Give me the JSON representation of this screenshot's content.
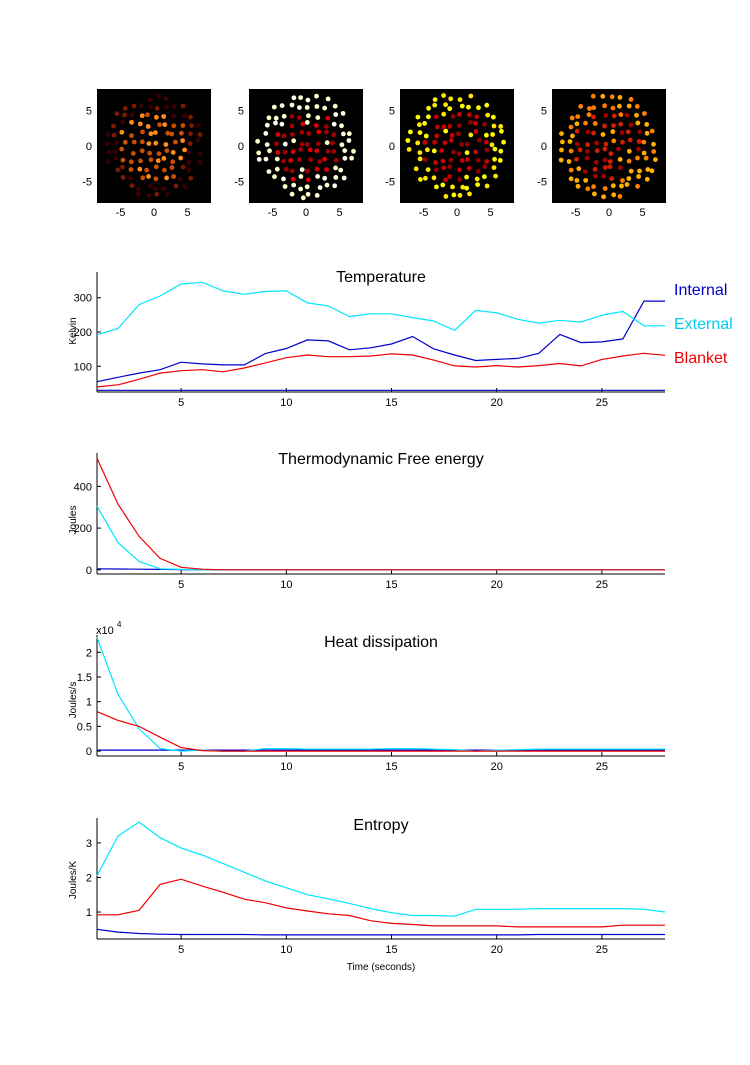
{
  "chart_data": [
    {
      "type": "scatter",
      "panel": "snapshot-1",
      "xlim": [
        -8.5,
        8.5
      ],
      "ylim": [
        -8,
        8
      ],
      "xticks": [
        "-5",
        "0",
        "5"
      ],
      "yticks": [
        "5",
        "0",
        "-5"
      ],
      "palette": [
        "#3a0000",
        "#7a1a00",
        "#c85000",
        "#ff8c1a"
      ]
    },
    {
      "type": "scatter",
      "panel": "snapshot-2",
      "xlim": [
        -8.5,
        8.5
      ],
      "ylim": [
        -8,
        8
      ],
      "xticks": [
        "-5",
        "0",
        "5"
      ],
      "yticks": [
        "5",
        "0",
        "-5"
      ],
      "palette": [
        "#fffbe6",
        "#ffffcc",
        "#e00000",
        "#a00000"
      ]
    },
    {
      "type": "scatter",
      "panel": "snapshot-3",
      "xlim": [
        -8.5,
        8.5
      ],
      "ylim": [
        -8,
        8
      ],
      "xticks": [
        "-5",
        "0",
        "5"
      ],
      "yticks": [
        "5",
        "0",
        "-5"
      ],
      "palette": [
        "#ffff00",
        "#ffe600",
        "#c80000",
        "#900000"
      ]
    },
    {
      "type": "scatter",
      "panel": "snapshot-4",
      "xlim": [
        -8.5,
        8.5
      ],
      "ylim": [
        -8,
        8
      ],
      "xticks": [
        "-5",
        "0",
        "5"
      ],
      "yticks": [
        "5",
        "0",
        "-5"
      ],
      "palette": [
        "#ffb000",
        "#ff8000",
        "#d02000",
        "#a00000"
      ]
    },
    {
      "type": "line",
      "title": "Temperature",
      "ylabel": "Kelvin",
      "xlim": [
        1,
        28
      ],
      "ylim": [
        25,
        375
      ],
      "yticks": [
        100,
        200,
        300
      ],
      "x": [
        1,
        2,
        3,
        4,
        5,
        6,
        7,
        8,
        9,
        10,
        11,
        12,
        13,
        14,
        15,
        16,
        17,
        18,
        19,
        20,
        21,
        22,
        23,
        24,
        25,
        26,
        27,
        28
      ],
      "series": [
        {
          "name": "Internal",
          "color": "#0000cc",
          "values": [
            55,
            68,
            80,
            90,
            112,
            107,
            104,
            104,
            137,
            152,
            177,
            174,
            148,
            154,
            165,
            187,
            151,
            133,
            117,
            120,
            123,
            138,
            193,
            169,
            171,
            180,
            290,
            290
          ]
        },
        {
          "name": "External",
          "color": "#00e5ff",
          "values": [
            192,
            210,
            280,
            305,
            340,
            345,
            320,
            310,
            318,
            320,
            285,
            276,
            245,
            253,
            253,
            242,
            232,
            205,
            263,
            256,
            237,
            226,
            234,
            229,
            249,
            260,
            218,
            218
          ]
        },
        {
          "name": "Blanket",
          "color": "#ee0000",
          "values": [
            40,
            46,
            62,
            80,
            87,
            90,
            84,
            95,
            110,
            125,
            133,
            128,
            128,
            130,
            136,
            133,
            118,
            101,
            98,
            102,
            98,
            102,
            108,
            101,
            120,
            130,
            138,
            132
          ]
        },
        {
          "name": "",
          "color": "#0000cc",
          "values": [
            30,
            30,
            30,
            30,
            30,
            30,
            30,
            30,
            30,
            30,
            30,
            30,
            30,
            30,
            30,
            30,
            30,
            30,
            30,
            30,
            30,
            30,
            30,
            30,
            30,
            30,
            30,
            30
          ]
        }
      ],
      "legend": [
        "Internal",
        "External",
        "Blanket"
      ],
      "legend_position": "right"
    },
    {
      "type": "line",
      "title": "Thermodynamic Free energy",
      "ylabel": "Joules",
      "xlim": [
        1,
        28
      ],
      "ylim": [
        -20,
        560
      ],
      "yticks": [
        0,
        200,
        400
      ],
      "x": [
        1,
        2,
        3,
        4,
        5,
        6,
        7,
        8,
        9,
        10,
        11,
        12,
        13,
        14,
        15,
        16,
        17,
        18,
        19,
        20,
        21,
        22,
        23,
        24,
        25,
        26,
        27,
        28
      ],
      "series": [
        {
          "name": "Internal",
          "color": "#0000cc",
          "values": [
            5,
            4,
            3,
            2,
            1,
            0,
            0,
            0,
            0,
            0,
            0,
            0,
            0,
            0,
            0,
            0,
            0,
            0,
            0,
            0,
            0,
            0,
            0,
            0,
            0,
            0,
            0,
            0
          ]
        },
        {
          "name": "External",
          "color": "#00e5ff",
          "values": [
            305,
            130,
            40,
            5,
            2,
            0,
            0,
            0,
            0,
            0,
            0,
            0,
            0,
            0,
            0,
            0,
            0,
            0,
            0,
            0,
            0,
            0,
            0,
            0,
            0,
            0,
            0,
            0
          ]
        },
        {
          "name": "Blanket",
          "color": "#ee0000",
          "values": [
            535,
            315,
            160,
            55,
            12,
            3,
            0,
            0,
            0,
            0,
            0,
            0,
            0,
            0,
            0,
            0,
            0,
            0,
            0,
            0,
            0,
            0,
            0,
            0,
            0,
            0,
            0,
            0
          ]
        }
      ]
    },
    {
      "type": "line",
      "title": "Heat dissipation",
      "ylabel": "Joules/s",
      "multiplier": "x10",
      "multiplier_exp": "4",
      "xlim": [
        1,
        28
      ],
      "ylim": [
        -0.1,
        2.35
      ],
      "yticks": [
        0,
        0.5,
        1,
        1.5,
        2
      ],
      "x": [
        1,
        2,
        3,
        4,
        5,
        6,
        7,
        8,
        9,
        10,
        11,
        12,
        13,
        14,
        15,
        16,
        17,
        18,
        19,
        20,
        21,
        22,
        23,
        24,
        25,
        26,
        27,
        28
      ],
      "series": [
        {
          "name": "Internal",
          "color": "#0000cc",
          "values": [
            0.02,
            0.02,
            0.02,
            0.02,
            0.02,
            0.02,
            0.02,
            0.02,
            0.02,
            0.02,
            0.02,
            0.02,
            0.02,
            0.02,
            0.02,
            0.02,
            0.02,
            0.02,
            0.02,
            0.02,
            0.02,
            0.02,
            0.02,
            0.02,
            0.02,
            0.02,
            0.02,
            0.02
          ]
        },
        {
          "name": "External",
          "color": "#00e5ff",
          "values": [
            2.3,
            1.15,
            0.45,
            0.05,
            0.0,
            0.02,
            0.0,
            0.0,
            0.05,
            0.05,
            0.04,
            0.04,
            0.04,
            0.04,
            0.05,
            0.05,
            0.04,
            0.03,
            0.0,
            0.02,
            0.03,
            0.04,
            0.04,
            0.04,
            0.04,
            0.04,
            0.04,
            0.04
          ]
        },
        {
          "name": "Blanket",
          "color": "#ee0000",
          "values": [
            0.8,
            0.62,
            0.5,
            0.28,
            0.07,
            0.01,
            0.0,
            0.0,
            0.0,
            0.0,
            0.0,
            0.0,
            0.0,
            0.0,
            0.0,
            0.0,
            0.0,
            0.0,
            0.0,
            0.0,
            0.0,
            0.0,
            0.0,
            0.0,
            0.0,
            0.0,
            0.0,
            0.0
          ]
        }
      ]
    },
    {
      "type": "line",
      "title": "Entropy",
      "ylabel": "Joules/K",
      "xlabel": "Time (seconds)",
      "xlim": [
        1,
        28
      ],
      "ylim": [
        0.22,
        3.72
      ],
      "yticks": [
        1,
        2,
        3
      ],
      "xticks": [
        5,
        10,
        15,
        20,
        25
      ],
      "x": [
        1,
        2,
        3,
        4,
        5,
        6,
        7,
        8,
        9,
        10,
        11,
        12,
        13,
        14,
        15,
        16,
        17,
        18,
        19,
        20,
        21,
        22,
        23,
        24,
        25,
        26,
        27,
        28
      ],
      "series": [
        {
          "name": "Internal",
          "color": "#0000cc",
          "values": [
            0.5,
            0.42,
            0.38,
            0.36,
            0.35,
            0.35,
            0.35,
            0.35,
            0.34,
            0.34,
            0.34,
            0.34,
            0.34,
            0.34,
            0.34,
            0.34,
            0.34,
            0.34,
            0.34,
            0.34,
            0.34,
            0.35,
            0.35,
            0.35,
            0.35,
            0.35,
            0.35,
            0.35
          ]
        },
        {
          "name": "External",
          "color": "#00e5ff",
          "values": [
            2.05,
            3.2,
            3.6,
            3.15,
            2.85,
            2.65,
            2.4,
            2.15,
            1.9,
            1.7,
            1.5,
            1.38,
            1.25,
            1.1,
            0.98,
            0.9,
            0.9,
            0.88,
            1.08,
            1.08,
            1.08,
            1.1,
            1.1,
            1.1,
            1.1,
            1.1,
            1.08,
            1.0
          ]
        },
        {
          "name": "Blanket",
          "color": "#ee0000",
          "values": [
            0.92,
            0.92,
            1.05,
            1.8,
            1.95,
            1.75,
            1.57,
            1.37,
            1.27,
            1.12,
            1.03,
            0.95,
            0.9,
            0.75,
            0.67,
            0.64,
            0.6,
            0.6,
            0.6,
            0.6,
            0.57,
            0.57,
            0.57,
            0.57,
            0.57,
            0.62,
            0.62,
            0.62
          ]
        }
      ]
    }
  ]
}
